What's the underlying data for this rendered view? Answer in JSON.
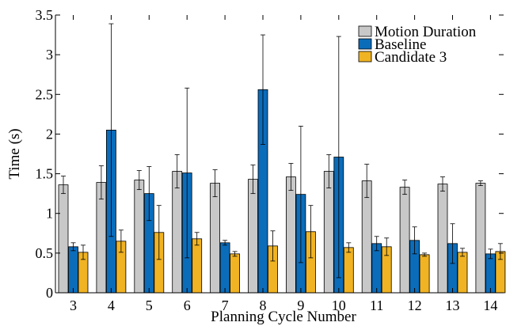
{
  "chart_data": {
    "type": "bar",
    "xlabel": "Planning Cycle Number",
    "ylabel": "Time (s)",
    "ylim": [
      0,
      3.5
    ],
    "yticks": [
      "0",
      "0.5",
      "1",
      "1.5",
      "2",
      "2.5",
      "3",
      "3.5"
    ],
    "ytick_values": [
      0,
      0.5,
      1,
      1.5,
      2,
      2.5,
      3,
      3.5
    ],
    "categories": [
      "3",
      "4",
      "5",
      "6",
      "7",
      "8",
      "9",
      "10",
      "11",
      "12",
      "13",
      "14"
    ],
    "grid": false,
    "legend_position": "top-right",
    "series": [
      {
        "name": "Motion Duration",
        "color": "#c8c8c8",
        "values": [
          1.36,
          1.39,
          1.42,
          1.53,
          1.38,
          1.43,
          1.46,
          1.53,
          1.41,
          1.33,
          1.37,
          1.38
        ],
        "errors": [
          0.11,
          0.21,
          0.12,
          0.21,
          0.17,
          0.18,
          0.17,
          0.21,
          0.21,
          0.09,
          0.09,
          0.03
        ]
      },
      {
        "name": "Baseline",
        "color": "#0b6cba",
        "values": [
          0.58,
          2.05,
          1.25,
          1.51,
          0.63,
          2.56,
          1.24,
          1.71,
          0.62,
          0.66,
          0.62,
          0.49
        ],
        "errors": [
          0.05,
          1.34,
          0.34,
          1.07,
          0.03,
          0.69,
          0.86,
          1.52,
          0.09,
          0.17,
          0.25,
          0.06
        ]
      },
      {
        "name": "Candidate 3",
        "color": "#f0b323",
        "values": [
          0.51,
          0.65,
          0.76,
          0.68,
          0.49,
          0.59,
          0.77,
          0.57,
          0.58,
          0.48,
          0.51,
          0.52
        ],
        "errors": [
          0.09,
          0.14,
          0.34,
          0.08,
          0.03,
          0.19,
          0.33,
          0.06,
          0.11,
          0.02,
          0.05,
          0.1
        ]
      }
    ]
  }
}
